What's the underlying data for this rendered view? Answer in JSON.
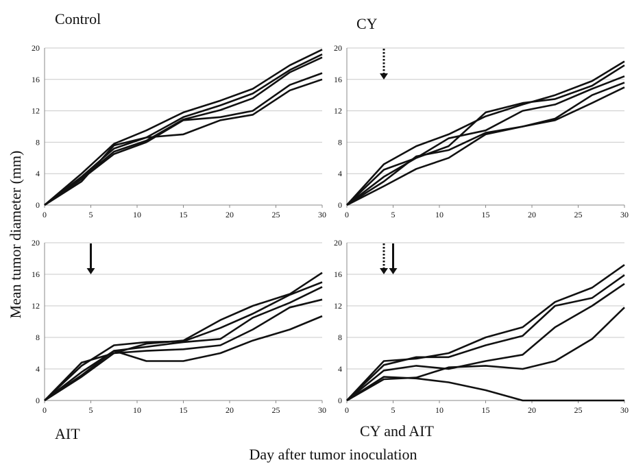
{
  "ylabel": "Mean tumor diameter (mm)",
  "xlabel": "Day after tumor inoculation",
  "chart_data": [
    {
      "type": "line",
      "title": "Control",
      "xlim": [
        0,
        30
      ],
      "ylim": [
        0,
        20
      ],
      "xticks": [
        "0",
        "5",
        "10",
        "15",
        "20",
        "25",
        "30"
      ],
      "yticks": [
        "0",
        "4",
        "8",
        "12",
        "16",
        "20"
      ],
      "grid": true,
      "arrows": [],
      "series": [
        {
          "x": [
            0,
            4,
            7.5,
            11,
            15,
            19,
            22.5,
            26.5,
            30
          ],
          "y": [
            0,
            4,
            7.8,
            9.5,
            11.8,
            13.3,
            14.8,
            17.8,
            19.8
          ]
        },
        {
          "x": [
            0,
            4,
            7.5,
            11,
            15,
            19,
            22.5,
            26.5,
            30
          ],
          "y": [
            0,
            3.6,
            7.2,
            8.6,
            11.2,
            12.7,
            14.2,
            17.2,
            19.2
          ]
        },
        {
          "x": [
            0,
            4,
            7.5,
            11,
            15,
            19,
            22.5,
            26.5,
            30
          ],
          "y": [
            0,
            3.4,
            6.8,
            8.2,
            10.9,
            12.1,
            13.6,
            16.9,
            18.8
          ]
        },
        {
          "x": [
            0,
            4,
            7.5,
            11,
            15,
            19,
            22.5,
            26.5,
            30
          ],
          "y": [
            0,
            3.3,
            6.5,
            8.0,
            10.8,
            11.2,
            12.0,
            15.3,
            16.8
          ]
        },
        {
          "x": [
            0,
            4,
            7.5,
            11,
            15,
            19,
            22.5,
            26.5,
            30
          ],
          "y": [
            0,
            3.0,
            7.6,
            8.6,
            9.0,
            10.8,
            11.5,
            14.6,
            16.0
          ]
        }
      ]
    },
    {
      "type": "line",
      "title": "CY",
      "xlim": [
        0,
        30
      ],
      "ylim": [
        0,
        20
      ],
      "xticks": [
        "0",
        "5",
        "10",
        "15",
        "20",
        "25",
        "30"
      ],
      "yticks": [
        "0",
        "4",
        "8",
        "12",
        "16",
        "20"
      ],
      "grid": true,
      "arrows": [
        {
          "day": 4,
          "style": "dotted"
        }
      ],
      "series": [
        {
          "x": [
            0,
            4,
            7.5,
            11,
            15,
            19,
            22.5,
            26.5,
            30
          ],
          "y": [
            0,
            5.2,
            7.5,
            9.0,
            11.3,
            12.8,
            14.0,
            15.8,
            18.3
          ]
        },
        {
          "x": [
            0,
            4,
            7.5,
            11,
            15,
            19,
            22.5,
            26.5,
            30
          ],
          "y": [
            0,
            4.5,
            6.0,
            7.5,
            11.8,
            13.0,
            13.5,
            15.2,
            17.8
          ]
        },
        {
          "x": [
            0,
            4,
            7.5,
            11,
            15,
            19,
            22.5,
            26.5,
            30
          ],
          "y": [
            0,
            3.6,
            6.0,
            8.5,
            9.5,
            12.0,
            12.8,
            14.8,
            16.4
          ]
        },
        {
          "x": [
            0,
            4,
            7.5,
            11,
            15,
            19,
            22.5,
            26.5,
            30
          ],
          "y": [
            0,
            3.0,
            6.2,
            7.0,
            9.2,
            10.0,
            11.0,
            14.0,
            15.6
          ]
        },
        {
          "x": [
            0,
            4,
            7.5,
            11,
            15,
            19,
            22.5,
            26.5,
            30
          ],
          "y": [
            0,
            2.4,
            4.6,
            6.0,
            9.0,
            10.0,
            10.8,
            13.0,
            15.0
          ]
        }
      ]
    },
    {
      "type": "line",
      "title": "AIT",
      "xlim": [
        0,
        30
      ],
      "ylim": [
        0,
        20
      ],
      "xticks": [
        "0",
        "5",
        "10",
        "15",
        "20",
        "25",
        "30"
      ],
      "yticks": [
        "0",
        "4",
        "8",
        "12",
        "16",
        "20"
      ],
      "grid": true,
      "arrows": [
        {
          "day": 5,
          "style": "solid"
        }
      ],
      "series": [
        {
          "x": [
            0,
            4,
            7.5,
            11,
            15,
            19,
            22.5,
            26.5,
            30
          ],
          "y": [
            0,
            4.8,
            6.0,
            7.2,
            7.6,
            10.2,
            12.0,
            13.5,
            16.2
          ]
        },
        {
          "x": [
            0,
            4,
            7.5,
            11,
            15,
            19,
            22.5,
            26.5,
            30
          ],
          "y": [
            0,
            4.4,
            7.0,
            7.4,
            7.5,
            9.2,
            11.0,
            13.4,
            15.0
          ]
        },
        {
          "x": [
            0,
            4,
            7.5,
            11,
            15,
            19,
            22.5,
            26.5,
            30
          ],
          "y": [
            0,
            3.6,
            6.3,
            6.8,
            7.4,
            7.8,
            10.5,
            12.4,
            14.4
          ]
        },
        {
          "x": [
            0,
            4,
            7.5,
            11,
            15,
            19,
            22.5,
            26.5,
            30
          ],
          "y": [
            0,
            3.0,
            6.0,
            6.3,
            6.5,
            7.0,
            9.0,
            11.8,
            12.8
          ]
        },
        {
          "x": [
            0,
            4,
            7.5,
            11,
            15,
            19,
            22.5,
            26.5,
            30
          ],
          "y": [
            0,
            3.2,
            6.3,
            5.0,
            5.0,
            6.0,
            7.6,
            9.0,
            10.7
          ]
        }
      ]
    },
    {
      "type": "line",
      "title": "CY and AIT",
      "xlim": [
        0,
        30
      ],
      "ylim": [
        0,
        20
      ],
      "xticks": [
        "0",
        "5",
        "10",
        "15",
        "20",
        "25",
        "30"
      ],
      "yticks": [
        "0",
        "4",
        "8",
        "12",
        "16",
        "20"
      ],
      "grid": true,
      "arrows": [
        {
          "day": 4,
          "style": "dotted"
        },
        {
          "day": 5,
          "style": "solid"
        }
      ],
      "series": [
        {
          "x": [
            0,
            4,
            7.5,
            11,
            15,
            19,
            22.5,
            26.5,
            30
          ],
          "y": [
            0,
            5.0,
            5.3,
            6.0,
            8.0,
            9.3,
            12.5,
            14.3,
            17.2
          ]
        },
        {
          "x": [
            0,
            4,
            7.5,
            11,
            15,
            19,
            22.5,
            26.5,
            30
          ],
          "y": [
            0,
            4.5,
            5.5,
            5.5,
            7.0,
            8.2,
            12.0,
            13.0,
            15.9
          ]
        },
        {
          "x": [
            0,
            4,
            7.5,
            11,
            15,
            19,
            22.5,
            26.5,
            30
          ],
          "y": [
            0,
            3.8,
            4.4,
            4.0,
            5.0,
            5.8,
            9.3,
            12.0,
            14.8
          ]
        },
        {
          "x": [
            0,
            4,
            7.5,
            11,
            15,
            19,
            22.5,
            26.5,
            30
          ],
          "y": [
            0,
            2.7,
            2.9,
            4.2,
            4.4,
            4.0,
            5.0,
            7.8,
            11.8
          ]
        },
        {
          "x": [
            0,
            4,
            7.5,
            11,
            15,
            19,
            22.5,
            26.5,
            30
          ],
          "y": [
            0,
            3.0,
            2.8,
            2.3,
            1.3,
            0,
            0,
            0,
            0
          ]
        }
      ]
    }
  ]
}
